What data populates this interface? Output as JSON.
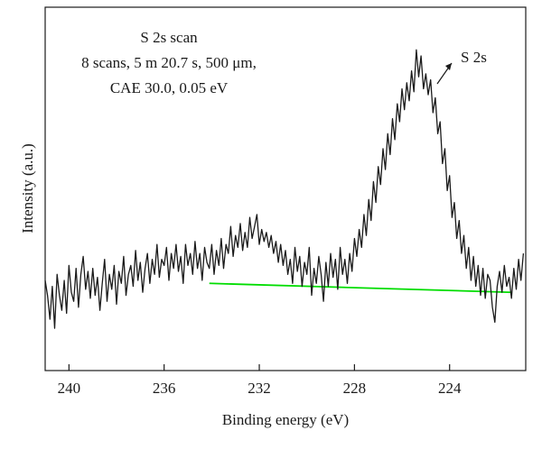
{
  "chart_data": {
    "type": "line",
    "title": "",
    "xlabel": "Binding energy (eV)",
    "ylabel": "Intensity (a.u.)",
    "xlim": [
      241.0,
      220.8
    ],
    "x_reversed": true,
    "x_ticks": [
      240,
      236,
      232,
      228,
      224
    ],
    "x_tick_labels": [
      "240",
      "236",
      "232",
      "228",
      "224"
    ],
    "y_ticks": false,
    "ylim": [
      0,
      100
    ],
    "grid": false,
    "legend": "none",
    "annotation_lines": [
      "S 2s scan",
      "8 scans, 5 m 20.7 s, 500 μm,",
      "CAE 30.0, 0.05 eV"
    ],
    "peak_label": "S 2s",
    "peak_label_position_ev": 224.9,
    "colors": {
      "spectrum": "#1a1a1a",
      "background": "#00dd00"
    },
    "series": [
      {
        "values": [
          [
            241.0,
            22
          ],
          [
            240.9,
            17
          ],
          [
            240.8,
            9
          ],
          [
            240.7,
            20
          ],
          [
            240.6,
            6
          ],
          [
            240.5,
            24
          ],
          [
            240.4,
            17
          ],
          [
            240.3,
            12
          ],
          [
            240.2,
            22
          ],
          [
            240.1,
            11
          ],
          [
            240.0,
            27
          ],
          [
            239.9,
            18
          ],
          [
            239.8,
            15
          ],
          [
            239.7,
            26
          ],
          [
            239.6,
            13
          ],
          [
            239.5,
            24
          ],
          [
            239.4,
            30
          ],
          [
            239.3,
            19
          ],
          [
            239.2,
            25
          ],
          [
            239.1,
            16
          ],
          [
            239.0,
            26
          ],
          [
            238.9,
            17
          ],
          [
            238.8,
            23
          ],
          [
            238.7,
            12
          ],
          [
            238.6,
            21
          ],
          [
            238.5,
            29
          ],
          [
            238.4,
            15
          ],
          [
            238.3,
            24
          ],
          [
            238.2,
            19
          ],
          [
            238.1,
            27
          ],
          [
            238.0,
            14
          ],
          [
            237.9,
            25
          ],
          [
            237.8,
            21
          ],
          [
            237.7,
            30
          ],
          [
            237.6,
            17
          ],
          [
            237.5,
            24
          ],
          [
            237.4,
            27
          ],
          [
            237.3,
            20
          ],
          [
            237.2,
            32
          ],
          [
            237.1,
            22
          ],
          [
            237.0,
            28
          ],
          [
            236.9,
            18
          ],
          [
            236.8,
            26
          ],
          [
            236.7,
            31
          ],
          [
            236.6,
            21
          ],
          [
            236.5,
            29
          ],
          [
            236.4,
            24
          ],
          [
            236.3,
            34
          ],
          [
            236.2,
            23
          ],
          [
            236.1,
            29
          ],
          [
            236.0,
            27
          ],
          [
            235.9,
            33
          ],
          [
            235.8,
            22
          ],
          [
            235.7,
            31
          ],
          [
            235.6,
            26
          ],
          [
            235.5,
            34
          ],
          [
            235.4,
            25
          ],
          [
            235.3,
            30
          ],
          [
            235.2,
            21
          ],
          [
            235.1,
            34
          ],
          [
            235.0,
            27
          ],
          [
            234.9,
            31
          ],
          [
            234.8,
            24
          ],
          [
            234.7,
            35
          ],
          [
            234.6,
            26
          ],
          [
            234.5,
            31
          ],
          [
            234.4,
            22
          ],
          [
            234.3,
            33
          ],
          [
            234.2,
            28
          ],
          [
            234.1,
            26
          ],
          [
            234.0,
            34
          ],
          [
            233.9,
            24
          ],
          [
            233.8,
            32
          ],
          [
            233.7,
            27
          ],
          [
            233.6,
            36
          ],
          [
            233.5,
            26
          ],
          [
            233.4,
            34
          ],
          [
            233.3,
            31
          ],
          [
            233.2,
            40
          ],
          [
            233.1,
            30
          ],
          [
            233.0,
            37
          ],
          [
            232.9,
            33
          ],
          [
            232.8,
            41
          ],
          [
            232.7,
            32
          ],
          [
            232.6,
            38
          ],
          [
            232.5,
            33
          ],
          [
            232.4,
            43
          ],
          [
            232.3,
            36
          ],
          [
            232.2,
            40
          ],
          [
            232.1,
            44
          ],
          [
            232.0,
            34
          ],
          [
            231.9,
            39
          ],
          [
            231.8,
            35
          ],
          [
            231.7,
            38
          ],
          [
            231.6,
            33
          ],
          [
            231.5,
            37
          ],
          [
            231.4,
            31
          ],
          [
            231.3,
            35
          ],
          [
            231.2,
            28
          ],
          [
            231.1,
            34
          ],
          [
            231.0,
            27
          ],
          [
            230.9,
            32
          ],
          [
            230.8,
            24
          ],
          [
            230.7,
            29
          ],
          [
            230.6,
            21
          ],
          [
            230.5,
            33
          ],
          [
            230.4,
            25
          ],
          [
            230.3,
            30
          ],
          [
            230.2,
            20
          ],
          [
            230.1,
            28
          ],
          [
            230.0,
            24
          ],
          [
            229.9,
            33
          ],
          [
            229.8,
            17
          ],
          [
            229.7,
            26
          ],
          [
            229.6,
            21
          ],
          [
            229.5,
            30
          ],
          [
            229.4,
            24
          ],
          [
            229.3,
            15
          ],
          [
            229.2,
            28
          ],
          [
            229.1,
            20
          ],
          [
            229.0,
            31
          ],
          [
            228.9,
            23
          ],
          [
            228.8,
            29
          ],
          [
            228.7,
            19
          ],
          [
            228.6,
            33
          ],
          [
            228.5,
            24
          ],
          [
            228.4,
            29
          ],
          [
            228.3,
            21
          ],
          [
            228.2,
            31
          ],
          [
            228.1,
            25
          ],
          [
            228.0,
            36
          ],
          [
            227.9,
            30
          ],
          [
            227.8,
            39
          ],
          [
            227.7,
            33
          ],
          [
            227.6,
            44
          ],
          [
            227.5,
            37
          ],
          [
            227.4,
            49
          ],
          [
            227.3,
            42
          ],
          [
            227.2,
            55
          ],
          [
            227.1,
            48
          ],
          [
            227.0,
            60
          ],
          [
            226.9,
            54
          ],
          [
            226.8,
            66
          ],
          [
            226.7,
            59
          ],
          [
            226.6,
            71
          ],
          [
            226.5,
            64
          ],
          [
            226.4,
            76
          ],
          [
            226.3,
            69
          ],
          [
            226.2,
            81
          ],
          [
            226.1,
            75
          ],
          [
            226.0,
            86
          ],
          [
            225.9,
            79
          ],
          [
            225.8,
            88
          ],
          [
            225.7,
            82
          ],
          [
            225.6,
            92
          ],
          [
            225.5,
            85
          ],
          [
            225.4,
            99
          ],
          [
            225.3,
            90
          ],
          [
            225.2,
            97
          ],
          [
            225.1,
            86
          ],
          [
            225.0,
            91
          ],
          [
            224.9,
            84
          ],
          [
            224.8,
            89
          ],
          [
            224.7,
            78
          ],
          [
            224.6,
            83
          ],
          [
            224.5,
            71
          ],
          [
            224.4,
            75
          ],
          [
            224.3,
            61
          ],
          [
            224.2,
            66
          ],
          [
            224.1,
            52
          ],
          [
            224.0,
            57
          ],
          [
            223.9,
            43
          ],
          [
            223.8,
            48
          ],
          [
            223.7,
            36
          ],
          [
            223.6,
            42
          ],
          [
            223.5,
            31
          ],
          [
            223.4,
            37
          ],
          [
            223.3,
            26
          ],
          [
            223.2,
            33
          ],
          [
            223.1,
            22
          ],
          [
            223.0,
            30
          ],
          [
            222.9,
            20
          ],
          [
            222.8,
            27
          ],
          [
            222.7,
            17
          ],
          [
            222.6,
            26
          ],
          [
            222.5,
            16
          ],
          [
            222.4,
            24
          ],
          [
            222.3,
            22
          ],
          [
            222.2,
            13
          ],
          [
            222.1,
            8
          ],
          [
            222.0,
            20
          ],
          [
            221.9,
            25
          ],
          [
            221.8,
            18
          ],
          [
            221.7,
            27
          ],
          [
            221.6,
            20
          ],
          [
            221.5,
            23
          ],
          [
            221.4,
            16
          ],
          [
            221.3,
            26
          ],
          [
            221.2,
            19
          ],
          [
            221.1,
            29
          ],
          [
            221.0,
            22
          ],
          [
            220.9,
            31
          ]
        ]
      },
      {
        "values": [
          [
            234.1,
            21
          ],
          [
            221.4,
            18
          ]
        ]
      }
    ]
  }
}
